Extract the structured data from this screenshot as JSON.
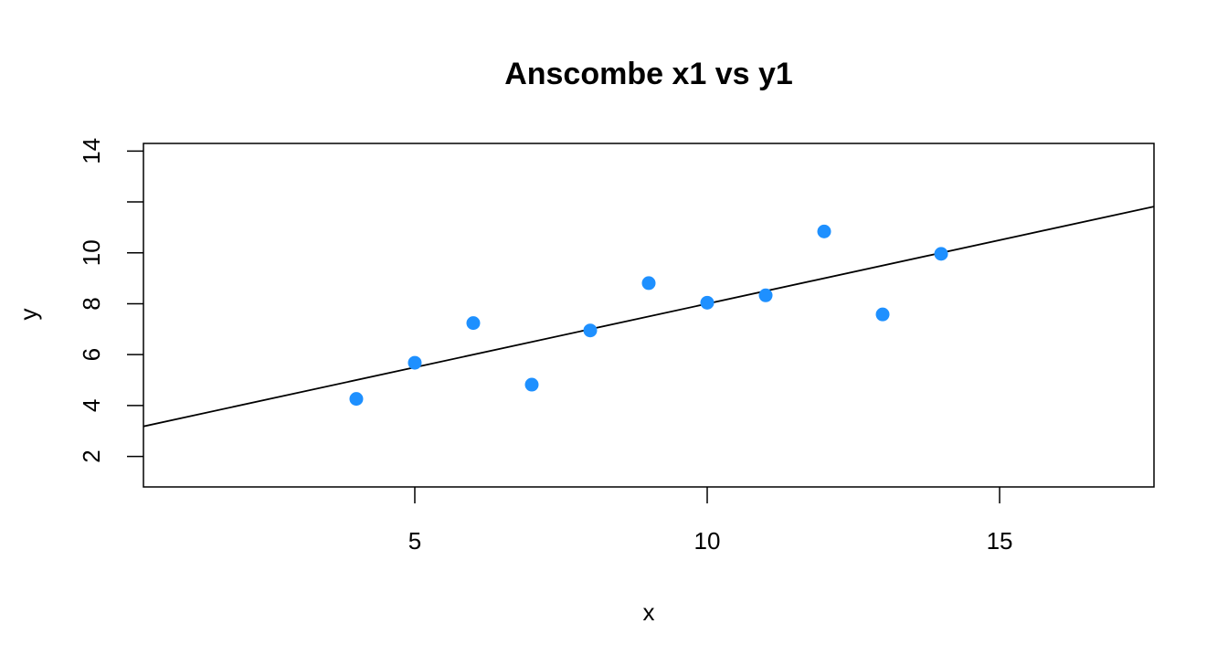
{
  "chart_data": {
    "type": "scatter",
    "title": "Anscombe x1 vs y1",
    "xlabel": "x",
    "ylabel": "y",
    "xlim": [
      0.36,
      17.64
    ],
    "ylim": [
      0.8,
      14.3
    ],
    "xticks": [
      5,
      10,
      15
    ],
    "yticks": [
      2,
      4,
      6,
      8,
      10,
      12,
      14
    ],
    "ytick_labels": [
      "2",
      "4",
      "6",
      "8",
      "10",
      "",
      "14"
    ],
    "point_color": "#1E90FF",
    "line_color": "#000000",
    "grid": false,
    "legend": "none",
    "points": [
      {
        "x": 10,
        "y": 8.04
      },
      {
        "x": 8,
        "y": 6.95
      },
      {
        "x": 13,
        "y": 7.58
      },
      {
        "x": 9,
        "y": 8.81
      },
      {
        "x": 11,
        "y": 8.33
      },
      {
        "x": 14,
        "y": 9.96
      },
      {
        "x": 6,
        "y": 7.24
      },
      {
        "x": 4,
        "y": 4.26
      },
      {
        "x": 12,
        "y": 10.84
      },
      {
        "x": 7,
        "y": 4.82
      },
      {
        "x": 5,
        "y": 5.68
      }
    ],
    "fit_line": {
      "intercept": 3.0,
      "slope": 0.5
    }
  }
}
